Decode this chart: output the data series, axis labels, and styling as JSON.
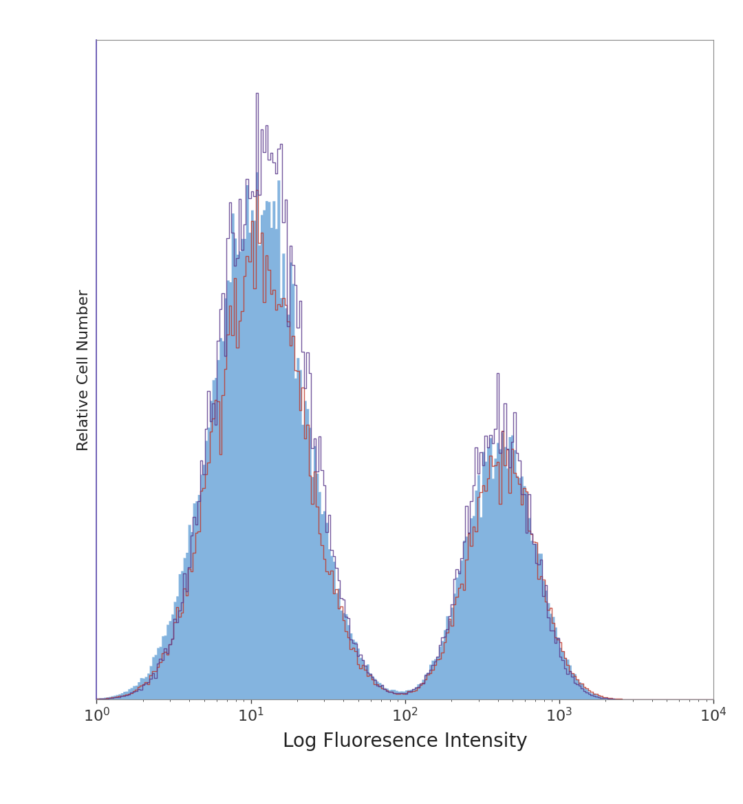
{
  "title": "",
  "xlabel": "Log Fluoresence Intensity",
  "ylabel": "Relative Cell Number",
  "xlim": [
    1,
    10000
  ],
  "ylim": [
    0,
    1.0
  ],
  "background_color": "#ffffff",
  "plot_bg_color": "#ffffff",
  "blue_color": "#5b9bd5",
  "red_color": "#c0392b",
  "purple_color": "#5b3a8c",
  "xlabel_fontsize": 20,
  "ylabel_fontsize": 16,
  "tick_fontsize": 16,
  "spine_color": "#888888",
  "left_spine_color": "#5544aa"
}
